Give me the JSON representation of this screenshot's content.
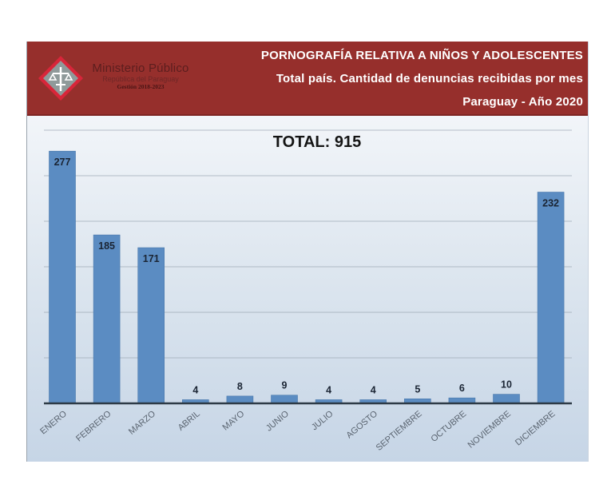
{
  "header": {
    "org_name": "Ministerio Público",
    "org_subtitle": "República del Paraguay",
    "org_term": "Gestión 2018-2023",
    "title_line1": "PORNOGRAFÍA RELATIVA A NIÑOS Y ADOLESCENTES",
    "title_line2": "Total país. Cantidad de denuncias recibidas por mes",
    "title_line3": "Paraguay - Año 2020",
    "logo_icon": "scales-of-justice-icon",
    "header_color": "#962f2c"
  },
  "total_label": "TOTAL: 915",
  "colors": {
    "bar": "#5b8cc2",
    "bar_edge": "#4a78ab",
    "grid": "#9ba7b3",
    "axis": "#2d3a46",
    "label": "#5a6470",
    "value": "#1a2433"
  },
  "chart_data": {
    "type": "bar",
    "title": "PORNOGRAFÍA RELATIVA A NIÑOS Y ADOLESCENTES — Total país. Cantidad de denuncias recibidas por mes — Paraguay - Año 2020",
    "annotation": "TOTAL: 915",
    "categories": [
      "ENERO",
      "FEBRERO",
      "MARZO",
      "ABRIL",
      "MAYO",
      "JUNIO",
      "JULIO",
      "AGOSTO",
      "SEPTIEMBRE",
      "OCTUBRE",
      "NOVIEMBRE",
      "DICIEMBRE"
    ],
    "values": [
      277,
      185,
      171,
      4,
      8,
      9,
      4,
      4,
      5,
      6,
      10,
      232
    ],
    "xlabel": "",
    "ylabel": "",
    "ylim": [
      0,
      300
    ],
    "grid": true,
    "grid_step": 50,
    "y_tick_labels_visible": false,
    "legend": null,
    "data_labels": true
  }
}
